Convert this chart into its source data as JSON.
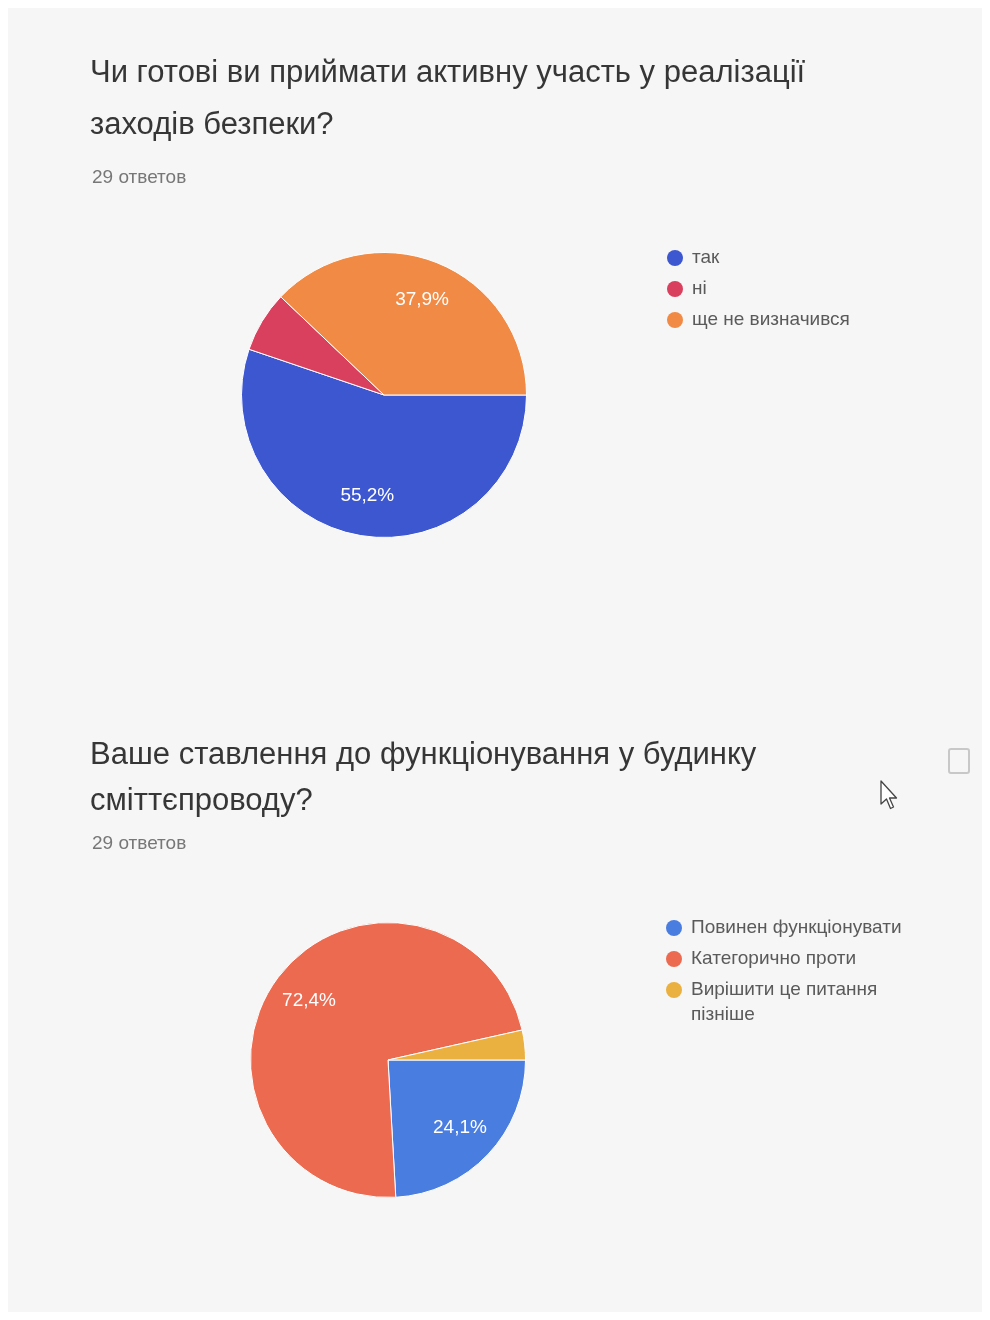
{
  "chart_data": [
    {
      "type": "pie",
      "title": "Чи готові ви приймати активну участь у реалізації заходів безпеки?",
      "subtitle": "29 ответов",
      "categories": [
        "так",
        "ні",
        "ще не визначився"
      ],
      "values": [
        55.2,
        6.9,
        37.9
      ],
      "colors": [
        "#3d57d0",
        "#d8405e",
        "#f08a45"
      ],
      "value_labels": [
        "55,2%",
        null,
        "37,9%"
      ],
      "legend": "top right"
    },
    {
      "type": "pie",
      "title": "Ваше ставлення до функціонування у будинку сміттєпроводу?",
      "subtitle": "29 ответов",
      "categories": [
        "Повинен функціонувати",
        "Категорично проти",
        "Вирішити це питання пізніше"
      ],
      "values": [
        24.1,
        72.4,
        3.5
      ],
      "colors": [
        "#4a7de0",
        "#ec6a50",
        "#eab040"
      ],
      "value_labels": [
        "24,1%",
        "72,4%",
        null
      ],
      "legend": "top right"
    }
  ]
}
